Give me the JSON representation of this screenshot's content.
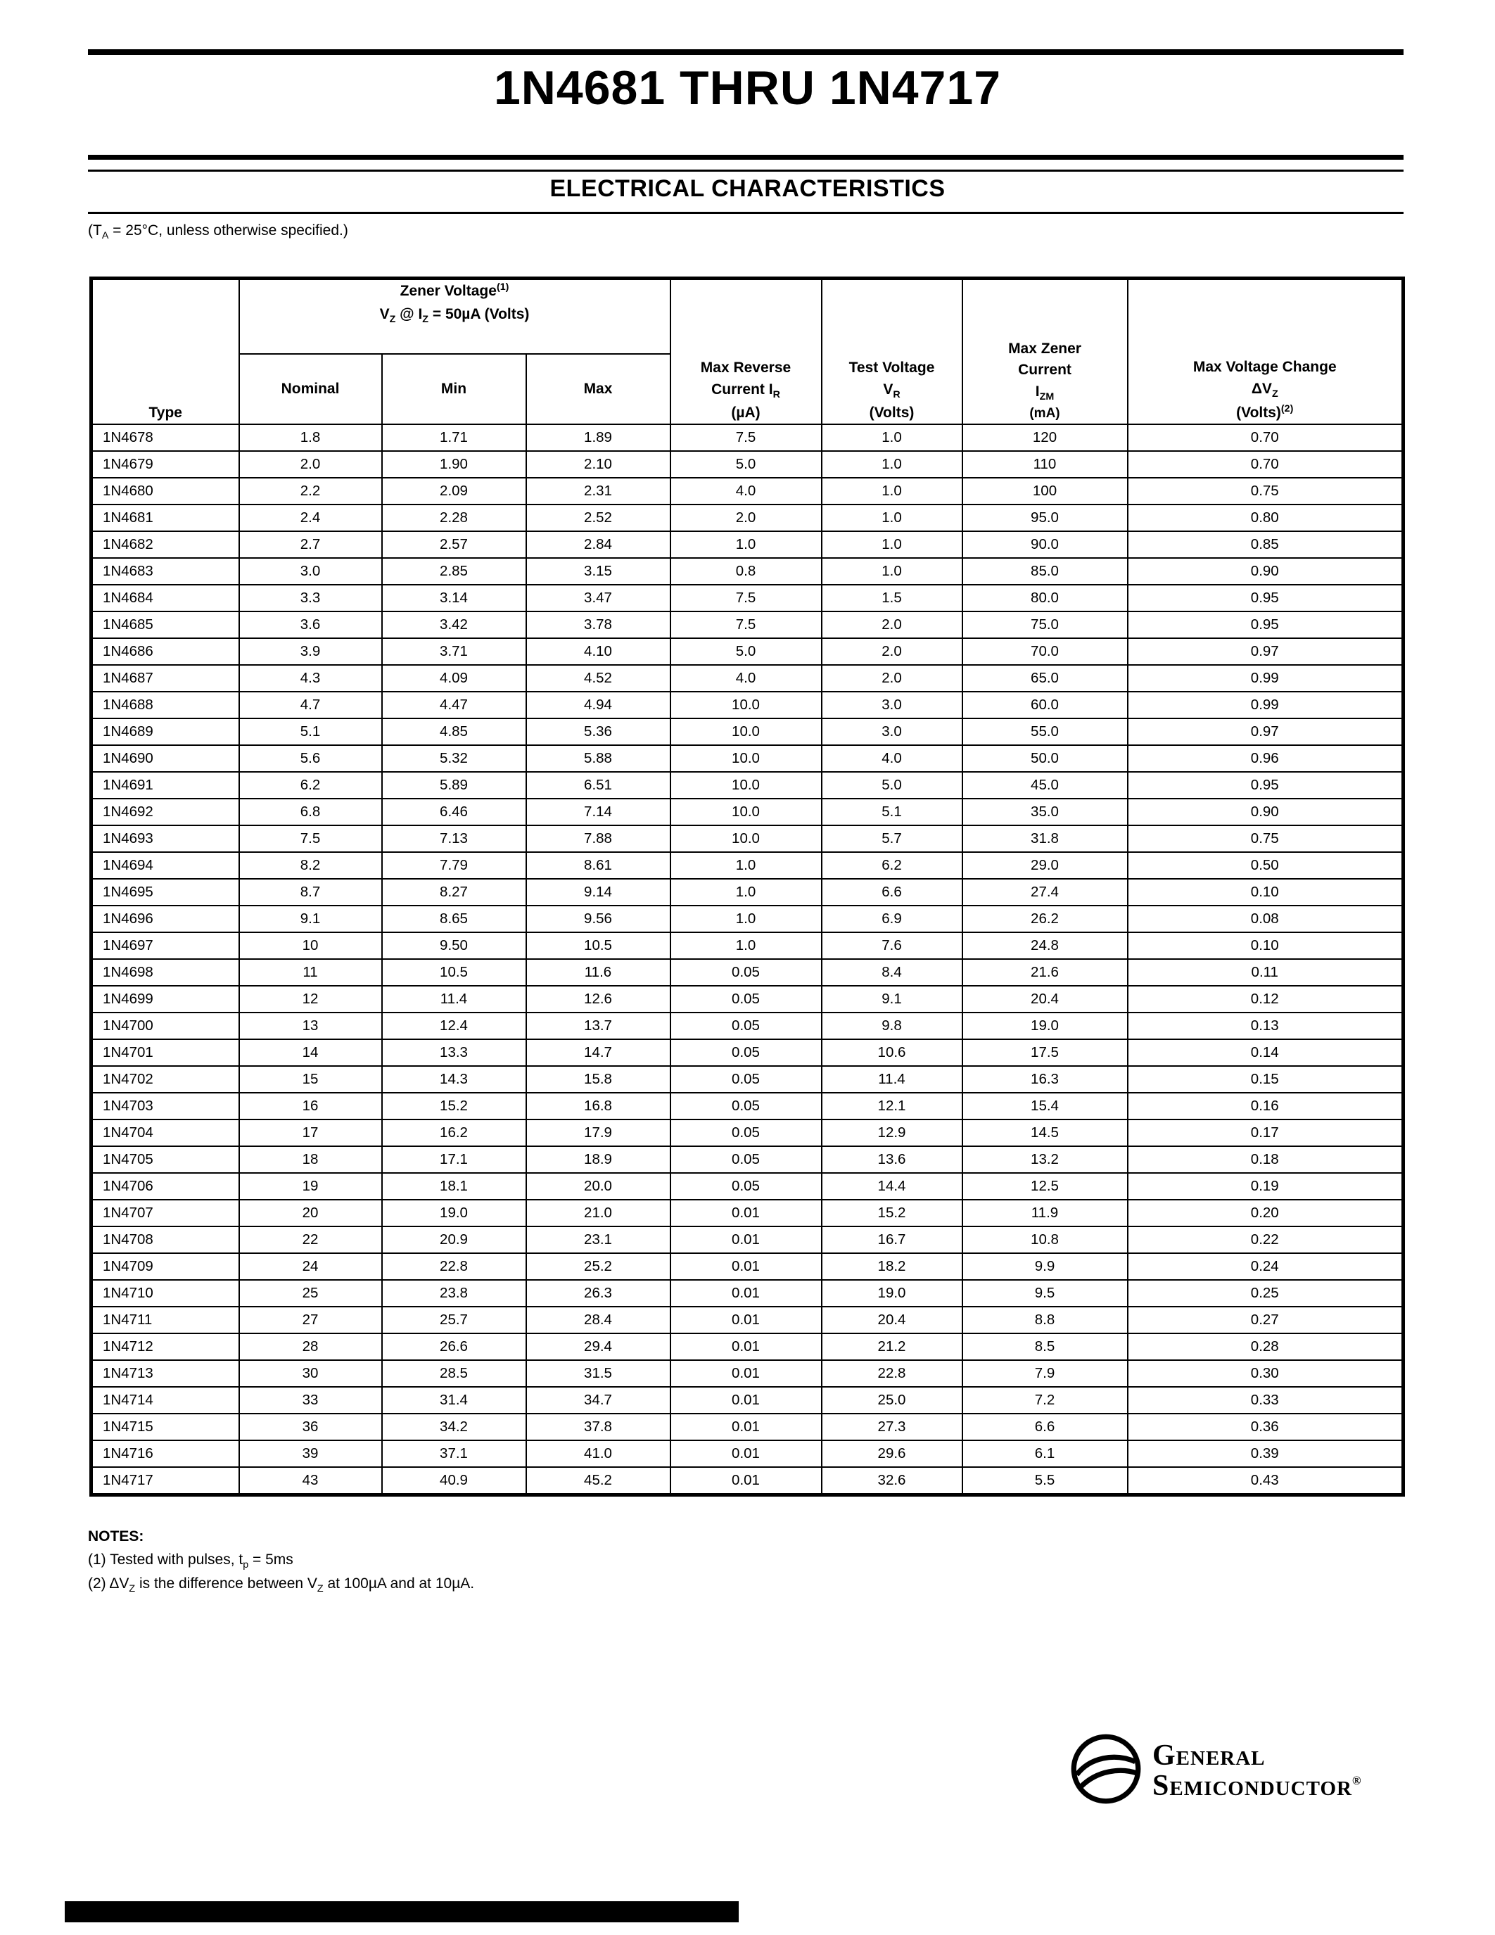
{
  "page": {
    "title": "1N4681 THRU 1N4717",
    "section_title": "ELECTRICAL CHARACTERISTICS",
    "condition": {
      "a": "(T",
      "sub": "A",
      "b": " = 25°C, unless otherwise specified.)"
    }
  },
  "table": {
    "columns": {
      "type": "Type",
      "zener_title": "Zener Voltage",
      "zener_sup": "(1)",
      "zener_cond_pre": "V",
      "zener_cond_sub1": "Z",
      "zener_cond_mid": " @ I",
      "zener_cond_sub2": "Z",
      "zener_cond_post": " = 50µA (Volts)",
      "nominal": "Nominal",
      "min": "Min",
      "max": "Max",
      "rev_line1": "Max Reverse",
      "rev_line2": "Current I",
      "rev_sub": "R",
      "rev_line3": "(µA)",
      "test_line1": "Test Voltage",
      "test_v": "V",
      "test_sub": "R",
      "test_line3": "(Volts)",
      "izm_line1": "Max Zener",
      "izm_line2": "Current",
      "izm_i": "I",
      "izm_sub": "ZM",
      "izm_line4": "(mA)",
      "dvz_line1": "Max Voltage Change",
      "dvz_d": "ΔV",
      "dvz_sub": "Z",
      "dvz_line3": "(Volts)",
      "dvz_sup": "(2)"
    },
    "rows": [
      [
        "1N4678",
        "1.8",
        "1.71",
        "1.89",
        "7.5",
        "1.0",
        "120",
        "0.70"
      ],
      [
        "1N4679",
        "2.0",
        "1.90",
        "2.10",
        "5.0",
        "1.0",
        "110",
        "0.70"
      ],
      [
        "1N4680",
        "2.2",
        "2.09",
        "2.31",
        "4.0",
        "1.0",
        "100",
        "0.75"
      ],
      [
        "1N4681",
        "2.4",
        "2.28",
        "2.52",
        "2.0",
        "1.0",
        "95.0",
        "0.80"
      ],
      [
        "1N4682",
        "2.7",
        "2.57",
        "2.84",
        "1.0",
        "1.0",
        "90.0",
        "0.85"
      ],
      [
        "1N4683",
        "3.0",
        "2.85",
        "3.15",
        "0.8",
        "1.0",
        "85.0",
        "0.90"
      ],
      [
        "1N4684",
        "3.3",
        "3.14",
        "3.47",
        "7.5",
        "1.5",
        "80.0",
        "0.95"
      ],
      [
        "1N4685",
        "3.6",
        "3.42",
        "3.78",
        "7.5",
        "2.0",
        "75.0",
        "0.95"
      ],
      [
        "1N4686",
        "3.9",
        "3.71",
        "4.10",
        "5.0",
        "2.0",
        "70.0",
        "0.97"
      ],
      [
        "1N4687",
        "4.3",
        "4.09",
        "4.52",
        "4.0",
        "2.0",
        "65.0",
        "0.99"
      ],
      [
        "1N4688",
        "4.7",
        "4.47",
        "4.94",
        "10.0",
        "3.0",
        "60.0",
        "0.99"
      ],
      [
        "1N4689",
        "5.1",
        "4.85",
        "5.36",
        "10.0",
        "3.0",
        "55.0",
        "0.97"
      ],
      [
        "1N4690",
        "5.6",
        "5.32",
        "5.88",
        "10.0",
        "4.0",
        "50.0",
        "0.96"
      ],
      [
        "1N4691",
        "6.2",
        "5.89",
        "6.51",
        "10.0",
        "5.0",
        "45.0",
        "0.95"
      ],
      [
        "1N4692",
        "6.8",
        "6.46",
        "7.14",
        "10.0",
        "5.1",
        "35.0",
        "0.90"
      ],
      [
        "1N4693",
        "7.5",
        "7.13",
        "7.88",
        "10.0",
        "5.7",
        "31.8",
        "0.75"
      ],
      [
        "1N4694",
        "8.2",
        "7.79",
        "8.61",
        "1.0",
        "6.2",
        "29.0",
        "0.50"
      ],
      [
        "1N4695",
        "8.7",
        "8.27",
        "9.14",
        "1.0",
        "6.6",
        "27.4",
        "0.10"
      ],
      [
        "1N4696",
        "9.1",
        "8.65",
        "9.56",
        "1.0",
        "6.9",
        "26.2",
        "0.08"
      ],
      [
        "1N4697",
        "10",
        "9.50",
        "10.5",
        "1.0",
        "7.6",
        "24.8",
        "0.10"
      ],
      [
        "1N4698",
        "11",
        "10.5",
        "11.6",
        "0.05",
        "8.4",
        "21.6",
        "0.11"
      ],
      [
        "1N4699",
        "12",
        "11.4",
        "12.6",
        "0.05",
        "9.1",
        "20.4",
        "0.12"
      ],
      [
        "1N4700",
        "13",
        "12.4",
        "13.7",
        "0.05",
        "9.8",
        "19.0",
        "0.13"
      ],
      [
        "1N4701",
        "14",
        "13.3",
        "14.7",
        "0.05",
        "10.6",
        "17.5",
        "0.14"
      ],
      [
        "1N4702",
        "15",
        "14.3",
        "15.8",
        "0.05",
        "11.4",
        "16.3",
        "0.15"
      ],
      [
        "1N4703",
        "16",
        "15.2",
        "16.8",
        "0.05",
        "12.1",
        "15.4",
        "0.16"
      ],
      [
        "1N4704",
        "17",
        "16.2",
        "17.9",
        "0.05",
        "12.9",
        "14.5",
        "0.17"
      ],
      [
        "1N4705",
        "18",
        "17.1",
        "18.9",
        "0.05",
        "13.6",
        "13.2",
        "0.18"
      ],
      [
        "1N4706",
        "19",
        "18.1",
        "20.0",
        "0.05",
        "14.4",
        "12.5",
        "0.19"
      ],
      [
        "1N4707",
        "20",
        "19.0",
        "21.0",
        "0.01",
        "15.2",
        "11.9",
        "0.20"
      ],
      [
        "1N4708",
        "22",
        "20.9",
        "23.1",
        "0.01",
        "16.7",
        "10.8",
        "0.22"
      ],
      [
        "1N4709",
        "24",
        "22.8",
        "25.2",
        "0.01",
        "18.2",
        "9.9",
        "0.24"
      ],
      [
        "1N4710",
        "25",
        "23.8",
        "26.3",
        "0.01",
        "19.0",
        "9.5",
        "0.25"
      ],
      [
        "1N4711",
        "27",
        "25.7",
        "28.4",
        "0.01",
        "20.4",
        "8.8",
        "0.27"
      ],
      [
        "1N4712",
        "28",
        "26.6",
        "29.4",
        "0.01",
        "21.2",
        "8.5",
        "0.28"
      ],
      [
        "1N4713",
        "30",
        "28.5",
        "31.5",
        "0.01",
        "22.8",
        "7.9",
        "0.30"
      ],
      [
        "1N4714",
        "33",
        "31.4",
        "34.7",
        "0.01",
        "25.0",
        "7.2",
        "0.33"
      ],
      [
        "1N4715",
        "36",
        "34.2",
        "37.8",
        "0.01",
        "27.3",
        "6.6",
        "0.36"
      ],
      [
        "1N4716",
        "39",
        "37.1",
        "41.0",
        "0.01",
        "29.6",
        "6.1",
        "0.39"
      ],
      [
        "1N4717",
        "43",
        "40.9",
        "45.2",
        "0.01",
        "32.6",
        "5.5",
        "0.43"
      ]
    ]
  },
  "notes": {
    "title": "NOTES:",
    "n1a": "(1) Tested with pulses, t",
    "n1sub": "p",
    "n1b": " = 5ms",
    "n2a": "(2) ΔV",
    "n2sub1": "Z",
    "n2b": " is the difference between V",
    "n2sub2": "Z",
    "n2c": " at 100µA and at 10µA."
  },
  "footer": {
    "brand_word1": "General",
    "brand_word2": "Semiconductor",
    "registered": "®"
  }
}
